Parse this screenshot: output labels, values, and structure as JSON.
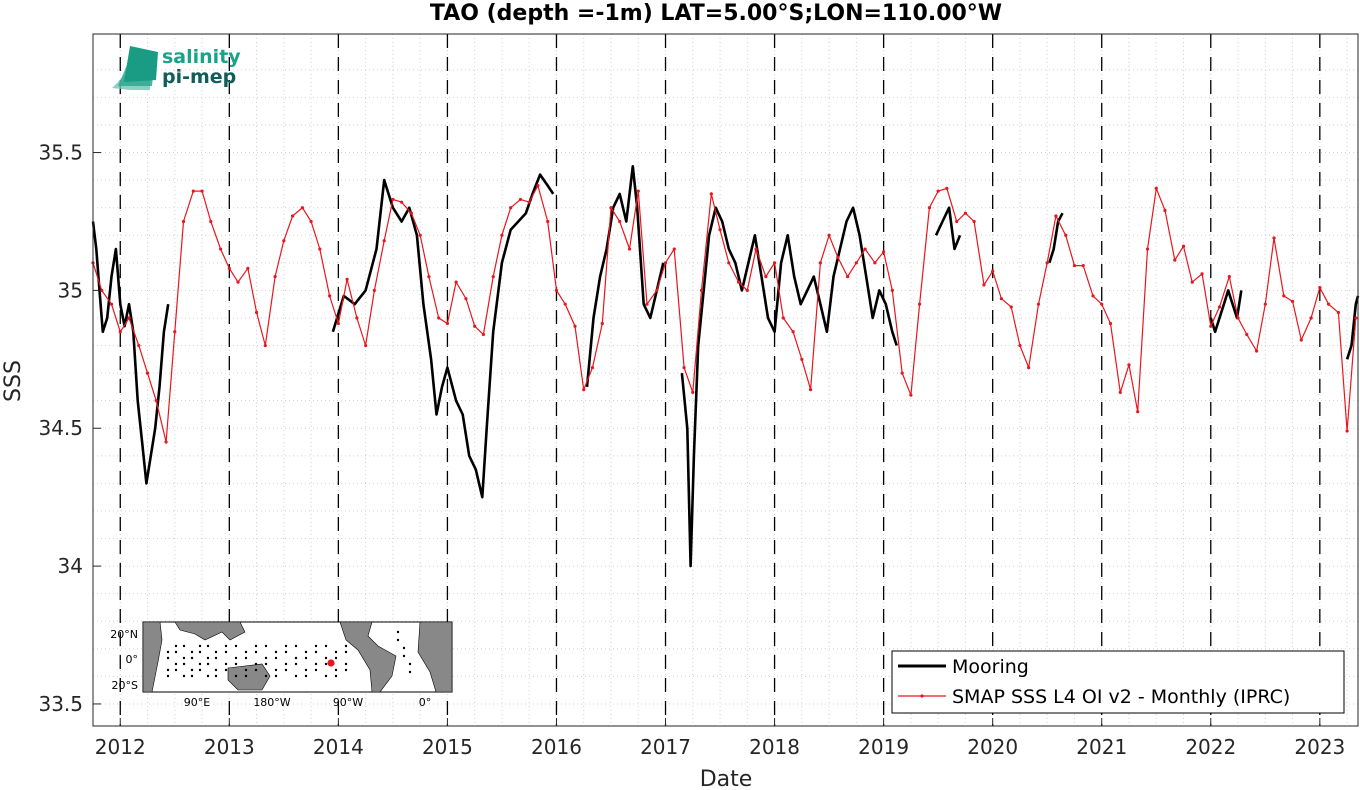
{
  "chart_data": {
    "type": "line",
    "title": "TAO (depth =-1m) LAT=5.00°S;LON=110.00°W",
    "xlabel": "Date",
    "ylabel": "SSS",
    "xlim": [
      2011.75,
      2023.35
    ],
    "ylim": [
      33.42,
      35.93
    ],
    "x_ticks": [
      2012,
      2013,
      2014,
      2015,
      2016,
      2017,
      2018,
      2019,
      2020,
      2021,
      2022,
      2023
    ],
    "x_tick_labels": [
      "2012",
      "2013",
      "2014",
      "2015",
      "2016",
      "2017",
      "2018",
      "2019",
      "2020",
      "2021",
      "2022",
      "2023"
    ],
    "y_ticks": [
      33.5,
      34,
      34.5,
      35,
      35.5
    ],
    "y_tick_labels": [
      "33.5",
      "34",
      "34.5",
      "35",
      "35.5"
    ],
    "grid": true,
    "year_marker_lines": "dashed vertical at each year",
    "legend_position": "bottom-right",
    "series": [
      {
        "name": "Mooring",
        "color": "#000000",
        "style": "thick line",
        "segments": [
          [
            [
              2011.75,
              35.25
            ],
            [
              2011.78,
              35.15
            ],
            [
              2011.81,
              35.0
            ],
            [
              2011.84,
              34.85
            ],
            [
              2011.88,
              34.9
            ],
            [
              2011.92,
              35.05
            ],
            [
              2011.96,
              35.15
            ],
            [
              2012.0,
              34.95
            ],
            [
              2012.04,
              34.87
            ],
            [
              2012.08,
              34.95
            ],
            [
              2012.12,
              34.85
            ],
            [
              2012.16,
              34.6
            ],
            [
              2012.2,
              34.45
            ],
            [
              2012.24,
              34.3
            ],
            [
              2012.28,
              34.4
            ],
            [
              2012.32,
              34.5
            ],
            [
              2012.36,
              34.65
            ],
            [
              2012.4,
              34.85
            ],
            [
              2012.44,
              34.95
            ]
          ],
          [
            [
              2013.95,
              34.85
            ],
            [
              2014.05,
              34.98
            ],
            [
              2014.15,
              34.95
            ],
            [
              2014.25,
              35.0
            ],
            [
              2014.35,
              35.15
            ],
            [
              2014.42,
              35.4
            ],
            [
              2014.5,
              35.3
            ],
            [
              2014.58,
              35.25
            ],
            [
              2014.65,
              35.3
            ],
            [
              2014.72,
              35.2
            ],
            [
              2014.78,
              34.95
            ],
            [
              2014.85,
              34.75
            ],
            [
              2014.9,
              34.55
            ],
            [
              2014.95,
              34.65
            ],
            [
              2015.0,
              34.72
            ],
            [
              2015.08,
              34.6
            ],
            [
              2015.14,
              34.55
            ],
            [
              2015.2,
              34.4
            ],
            [
              2015.26,
              34.35
            ],
            [
              2015.32,
              34.25
            ],
            [
              2015.36,
              34.5
            ],
            [
              2015.42,
              34.85
            ],
            [
              2015.5,
              35.1
            ],
            [
              2015.58,
              35.22
            ],
            [
              2015.65,
              35.25
            ],
            [
              2015.72,
              35.28
            ],
            [
              2015.78,
              35.35
            ],
            [
              2015.85,
              35.42
            ],
            [
              2015.92,
              35.38
            ],
            [
              2015.97,
              35.35
            ]
          ],
          [
            [
              2016.28,
              34.65
            ],
            [
              2016.34,
              34.9
            ],
            [
              2016.4,
              35.05
            ],
            [
              2016.46,
              35.15
            ],
            [
              2016.52,
              35.3
            ],
            [
              2016.58,
              35.35
            ],
            [
              2016.64,
              35.25
            ],
            [
              2016.7,
              35.45
            ],
            [
              2016.74,
              35.3
            ],
            [
              2016.8,
              34.95
            ],
            [
              2016.86,
              34.9
            ],
            [
              2016.92,
              35.0
            ],
            [
              2016.98,
              35.1
            ]
          ],
          [
            [
              2017.15,
              34.7
            ],
            [
              2017.2,
              34.5
            ],
            [
              2017.23,
              34.0
            ],
            [
              2017.26,
              34.4
            ],
            [
              2017.3,
              34.8
            ],
            [
              2017.35,
              35.0
            ],
            [
              2017.4,
              35.2
            ],
            [
              2017.46,
              35.3
            ],
            [
              2017.52,
              35.25
            ],
            [
              2017.58,
              35.15
            ],
            [
              2017.64,
              35.1
            ],
            [
              2017.7,
              35.0
            ],
            [
              2017.76,
              35.1
            ],
            [
              2017.82,
              35.2
            ],
            [
              2017.88,
              35.05
            ],
            [
              2017.94,
              34.9
            ],
            [
              2018.0,
              34.85
            ],
            [
              2018.06,
              35.1
            ],
            [
              2018.12,
              35.2
            ],
            [
              2018.18,
              35.05
            ],
            [
              2018.24,
              34.95
            ],
            [
              2018.3,
              35.0
            ],
            [
              2018.36,
              35.05
            ],
            [
              2018.42,
              34.95
            ],
            [
              2018.48,
              34.85
            ],
            [
              2018.54,
              35.05
            ],
            [
              2018.6,
              35.15
            ],
            [
              2018.66,
              35.25
            ],
            [
              2018.72,
              35.3
            ],
            [
              2018.78,
              35.2
            ],
            [
              2018.84,
              35.05
            ],
            [
              2018.9,
              34.9
            ],
            [
              2018.96,
              35.0
            ],
            [
              2019.02,
              34.95
            ],
            [
              2019.08,
              34.85
            ],
            [
              2019.12,
              34.8
            ]
          ],
          [
            [
              2019.48,
              35.2
            ],
            [
              2019.54,
              35.25
            ],
            [
              2019.6,
              35.3
            ],
            [
              2019.65,
              35.15
            ],
            [
              2019.7,
              35.2
            ]
          ],
          [
            [
              2020.52,
              35.1
            ],
            [
              2020.56,
              35.15
            ],
            [
              2020.6,
              35.25
            ],
            [
              2020.64,
              35.28
            ]
          ],
          [
            [
              2022.0,
              34.9
            ],
            [
              2022.04,
              34.85
            ],
            [
              2022.08,
              34.9
            ],
            [
              2022.12,
              34.95
            ],
            [
              2022.16,
              35.0
            ],
            [
              2022.2,
              34.95
            ],
            [
              2022.24,
              34.9
            ],
            [
              2022.28,
              35.0
            ]
          ],
          [
            [
              2023.25,
              34.75
            ],
            [
              2023.29,
              34.8
            ],
            [
              2023.33,
              34.95
            ],
            [
              2023.35,
              34.98
            ]
          ]
        ]
      },
      {
        "name": "SMAP SSS L4 OI v2 - Monthly (IPRC)",
        "color": "#e8161e",
        "style": "thin line with dot markers",
        "x": [
          2011.75,
          2011.83,
          2011.92,
          2012.0,
          2012.08,
          2012.17,
          2012.25,
          2012.33,
          2012.42,
          2012.5,
          2012.58,
          2012.67,
          2012.75,
          2012.83,
          2012.92,
          2013.0,
          2013.08,
          2013.17,
          2013.25,
          2013.33,
          2013.42,
          2013.5,
          2013.58,
          2013.67,
          2013.75,
          2013.83,
          2013.92,
          2014.0,
          2014.08,
          2014.17,
          2014.25,
          2014.33,
          2014.42,
          2014.5,
          2014.58,
          2014.67,
          2014.75,
          2014.83,
          2014.92,
          2015.0,
          2015.08,
          2015.17,
          2015.25,
          2015.33,
          2015.42,
          2015.5,
          2015.58,
          2015.67,
          2015.75,
          2015.83,
          2015.92,
          2016.0,
          2016.08,
          2016.17,
          2016.25,
          2016.33,
          2016.42,
          2016.5,
          2016.58,
          2016.67,
          2016.75,
          2016.83,
          2016.92,
          2017.0,
          2017.08,
          2017.17,
          2017.25,
          2017.33,
          2017.42,
          2017.5,
          2017.58,
          2017.67,
          2017.75,
          2017.83,
          2017.92,
          2018.0,
          2018.08,
          2018.17,
          2018.25,
          2018.33,
          2018.42,
          2018.5,
          2018.58,
          2018.67,
          2018.75,
          2018.83,
          2018.92,
          2019.0,
          2019.08,
          2019.17,
          2019.25,
          2019.33,
          2019.42,
          2019.5,
          2019.58,
          2019.67,
          2019.75,
          2019.83,
          2019.92,
          2020.0,
          2020.08,
          2020.17,
          2020.25,
          2020.33,
          2020.42,
          2020.5,
          2020.58,
          2020.67,
          2020.75,
          2020.83,
          2020.92,
          2021.0,
          2021.08,
          2021.17,
          2021.25,
          2021.33,
          2021.42,
          2021.5,
          2021.58,
          2021.67,
          2021.75,
          2021.83,
          2021.92,
          2022.0,
          2022.08,
          2022.17,
          2022.25,
          2022.33,
          2022.42,
          2022.5,
          2022.58,
          2022.67,
          2022.75,
          2022.83,
          2022.92,
          2023.0,
          2023.08,
          2023.17,
          2023.25,
          2023.33
        ],
        "y": [
          35.1,
          35.0,
          34.95,
          34.85,
          34.9,
          34.8,
          34.7,
          34.6,
          34.45,
          34.85,
          35.25,
          35.36,
          35.36,
          35.25,
          35.15,
          35.08,
          35.03,
          35.08,
          34.92,
          34.8,
          35.05,
          35.18,
          35.27,
          35.3,
          35.25,
          35.15,
          34.98,
          34.88,
          35.04,
          34.9,
          34.8,
          35.0,
          35.18,
          35.33,
          35.32,
          35.28,
          35.2,
          35.05,
          34.9,
          34.88,
          35.03,
          34.97,
          34.87,
          34.84,
          35.05,
          35.2,
          35.3,
          35.33,
          35.32,
          35.38,
          35.25,
          35.0,
          34.95,
          34.87,
          34.64,
          34.72,
          34.88,
          35.3,
          35.25,
          35.15,
          35.36,
          34.95,
          35.0,
          35.1,
          35.15,
          34.72,
          34.63,
          35.0,
          35.35,
          35.22,
          35.1,
          35.03,
          35.0,
          35.15,
          35.05,
          35.1,
          34.9,
          34.85,
          34.75,
          34.64,
          35.1,
          35.2,
          35.12,
          35.05,
          35.1,
          35.15,
          35.1,
          35.14,
          35.0,
          34.7,
          34.62,
          34.95,
          35.3,
          35.36,
          35.37,
          35.25,
          35.28,
          35.25,
          35.02,
          35.07,
          34.97,
          34.94,
          34.8,
          34.72,
          34.95,
          35.1,
          35.27,
          35.2,
          35.09,
          35.09,
          34.98,
          34.95,
          34.88,
          34.63,
          34.73,
          34.56,
          35.15,
          35.37,
          35.29,
          35.11,
          35.16,
          35.03,
          35.06,
          34.87,
          34.94,
          35.05,
          34.9,
          34.84,
          34.78,
          34.95,
          35.19,
          34.98,
          34.96,
          34.82,
          34.9,
          35.01,
          34.95,
          34.92,
          34.49,
          34.9
        ]
      }
    ],
    "inset_map": {
      "lat_labels": [
        "20°N",
        "0°",
        "20°S"
      ],
      "lon_labels": [
        "90°E",
        "180°W",
        "90°W",
        "0°"
      ],
      "marker_color": "#e8161e"
    }
  },
  "logo": {
    "line1": "salinity",
    "line2": "pi-mep"
  }
}
